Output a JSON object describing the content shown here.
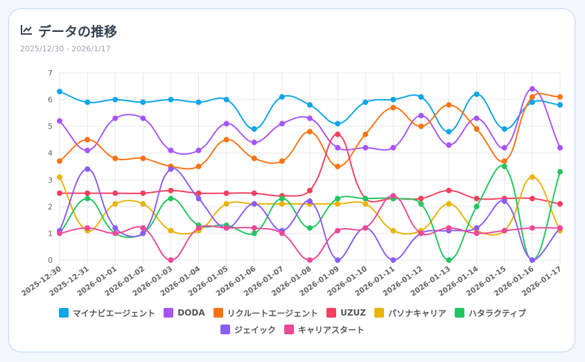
{
  "header": {
    "title": "データの推移",
    "icon": "line-chart-icon",
    "date_range": "2025/12/30 - 2026/1/17"
  },
  "chart_data": {
    "type": "line",
    "categories": [
      "2025-12-30",
      "2025-12-31",
      "2026-01-01",
      "2026-01-02",
      "2026-01-03",
      "2026-01-04",
      "2026-01-05",
      "2026-01-06",
      "2026-01-07",
      "2026-01-08",
      "2026-01-09",
      "2026-01-10",
      "2026-01-11",
      "2026-01-12",
      "2026-01-13",
      "2026-01-14",
      "2026-01-15",
      "2026-01-16",
      "2026-01-17"
    ],
    "ylim": [
      0,
      7
    ],
    "yticks": [
      "0",
      "1",
      "2",
      "3",
      "4",
      "5",
      "6",
      "7"
    ],
    "grid": true,
    "legend_position": "bottom",
    "series": [
      {
        "name": "マイナビエージェント",
        "color": "#0ea5e9",
        "values": [
          6.3,
          5.9,
          6.0,
          5.9,
          6.0,
          5.9,
          6.0,
          4.9,
          6.1,
          5.8,
          5.1,
          5.9,
          6.0,
          6.1,
          4.8,
          6.2,
          4.9,
          5.9,
          5.8
        ]
      },
      {
        "name": "DODA",
        "color": "#a855f7",
        "values": [
          5.2,
          4.1,
          5.3,
          5.3,
          4.1,
          4.1,
          5.1,
          4.4,
          5.1,
          5.3,
          4.2,
          4.2,
          4.2,
          5.4,
          4.3,
          5.3,
          4.2,
          6.4,
          4.2
        ]
      },
      {
        "name": "リクルートエージェント",
        "color": "#f97316",
        "values": [
          3.7,
          4.5,
          3.8,
          3.8,
          3.5,
          3.5,
          4.5,
          3.8,
          3.7,
          4.8,
          3.5,
          4.7,
          5.7,
          5.0,
          5.8,
          4.9,
          3.7,
          6.1,
          6.1
        ]
      },
      {
        "name": "UZUZ",
        "color": "#f43f5e",
        "values": [
          2.5,
          2.5,
          2.5,
          2.5,
          2.6,
          2.5,
          2.5,
          2.5,
          2.4,
          2.6,
          4.7,
          2.3,
          2.3,
          2.3,
          2.6,
          2.3,
          2.3,
          2.3,
          2.1
        ]
      },
      {
        "name": "パソナキャリア",
        "color": "#eab308",
        "values": [
          3.1,
          1.1,
          2.1,
          2.1,
          1.1,
          1.1,
          2.1,
          2.1,
          2.1,
          2.1,
          2.1,
          2.1,
          1.1,
          1.1,
          2.1,
          1.1,
          1.1,
          3.1,
          1.1
        ]
      },
      {
        "name": "ハタラクティブ",
        "color": "#22c55e",
        "values": [
          1.0,
          2.3,
          1.0,
          1.0,
          2.3,
          1.3,
          1.3,
          1.0,
          2.3,
          1.2,
          2.3,
          2.3,
          2.3,
          2.1,
          0,
          2.0,
          3.5,
          0,
          3.3
        ]
      },
      {
        "name": "ジェイック",
        "color": "#8b5cf6",
        "values": [
          1.1,
          3.4,
          1.2,
          1.0,
          3.4,
          2.3,
          1.2,
          2.1,
          1.1,
          2.2,
          0,
          1.2,
          0,
          1.0,
          1.1,
          1.2,
          2.2,
          0,
          1.2
        ]
      },
      {
        "name": "キャリアスタート",
        "color": "#ec4899",
        "values": [
          1.0,
          1.2,
          1.0,
          1.2,
          0,
          1.2,
          1.2,
          1.2,
          1.0,
          0,
          1.1,
          1.2,
          2.4,
          1.0,
          1.2,
          1.0,
          1.1,
          1.2,
          1.2
        ]
      }
    ]
  }
}
